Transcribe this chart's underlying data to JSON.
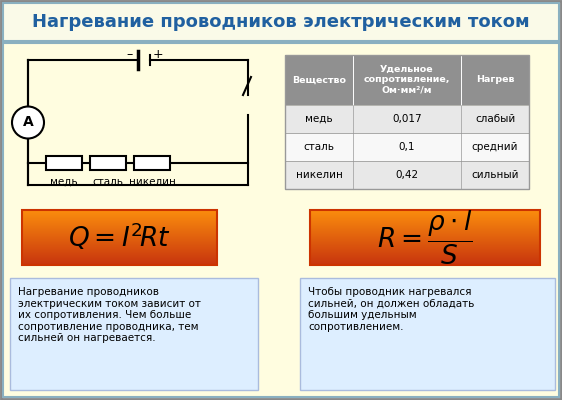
{
  "title": "Нагревание проводников электрическим током",
  "title_color": "#2060a0",
  "title_bg": "#fafae8",
  "title_border": "#8ab0c0",
  "main_bg": "#fffde0",
  "main_border": "#8ab0c0",
  "table_header_bg": "#909090",
  "table_header_color": "#ffffff",
  "table_row_bg1": "#e8e8e8",
  "table_row_bg2": "#f8f8f8",
  "table_border": "#999999",
  "table_headers": [
    "Вещество",
    "Удельное\nсопротивление,\nОм·мм²/м",
    "Нагрев"
  ],
  "table_rows": [
    [
      "медь",
      "0,017",
      "слабый"
    ],
    [
      "сталь",
      "0,1",
      "средний"
    ],
    [
      "никелин",
      "0,42",
      "сильный"
    ]
  ],
  "formula_border": "#cc3300",
  "text_box_bg": "#ddeeff",
  "text_box_border": "#aabbdd",
  "text_box1": "Нагревание проводников\nэлектрическим током зависит от\nих сопротивления. Чем больше\nсопротивление проводника, тем\nсильней он нагревается.",
  "text_box2": "Чтобы проводник нагревался\nсильней, он должен обладать\nбольшим удельным\nсопротивлением.",
  "circuit_labels": [
    "медь",
    "сталь",
    "никелин"
  ]
}
